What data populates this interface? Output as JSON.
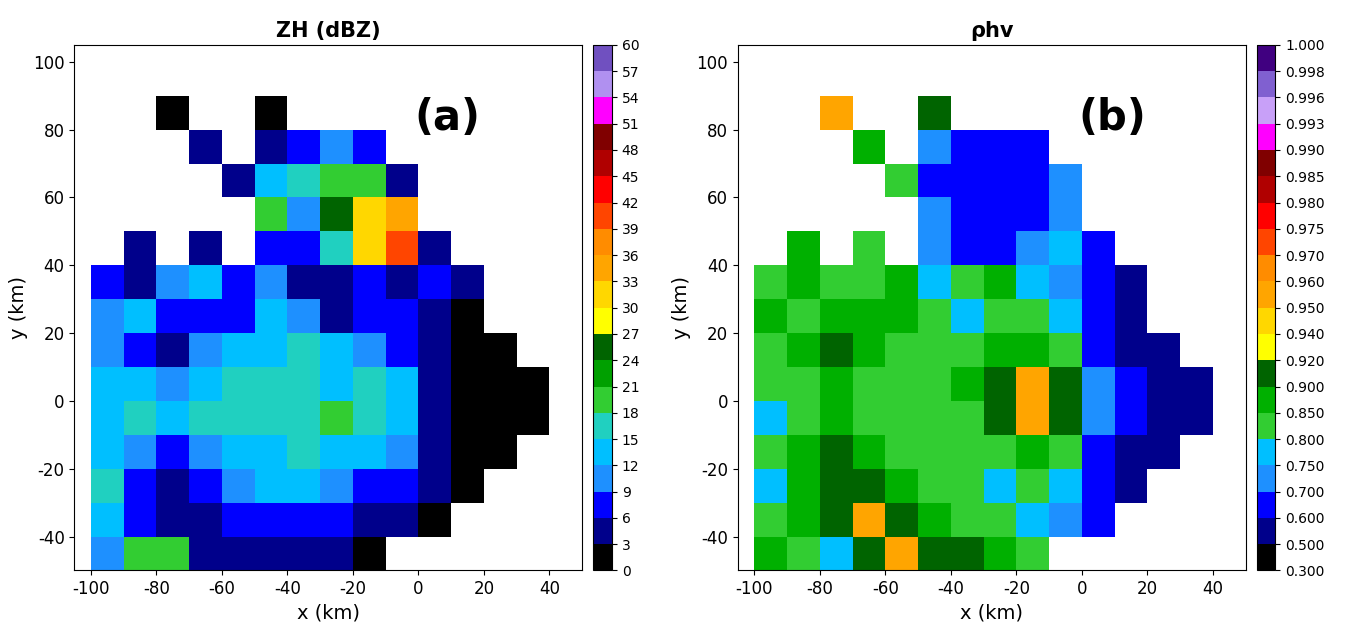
{
  "chart_data": [
    {
      "type": "heatmap",
      "title": "ZH (dBZ)",
      "annotation": "(a)",
      "x_label": "x (km)",
      "y_label": "y (km)",
      "xlim": [
        -105,
        50
      ],
      "ylim": [
        -50,
        105
      ],
      "xticks": [
        -100,
        -80,
        -60,
        -40,
        -20,
        0,
        20,
        40
      ],
      "yticks": [
        -40,
        -20,
        0,
        20,
        40,
        60,
        80,
        100
      ],
      "x_edges": [
        -100,
        -90,
        -80,
        -70,
        -60,
        -50,
        -40,
        -30,
        -20,
        -10,
        0,
        10,
        20,
        30,
        40,
        50
      ],
      "y_edges": [
        -50,
        -40,
        -30,
        -20,
        -10,
        0,
        10,
        20,
        30,
        40,
        50,
        60,
        70,
        80,
        90,
        100
      ],
      "cells": [
        [
          10,
          18,
          20,
          5,
          3,
          5,
          4,
          3,
          2,
          null,
          null,
          null,
          null,
          null,
          null
        ],
        [
          12,
          8,
          4,
          5,
          6,
          8,
          8,
          6,
          4,
          3,
          2,
          null,
          null,
          null,
          null
        ],
        [
          15,
          8,
          5,
          8,
          10,
          12,
          12,
          10,
          8,
          6,
          3,
          1,
          null,
          null,
          null
        ],
        [
          12,
          10,
          8,
          10,
          12,
          14,
          15,
          14,
          12,
          10,
          4,
          2,
          1,
          null,
          null
        ],
        [
          14,
          15,
          12,
          15,
          16,
          16,
          17,
          18,
          17,
          14,
          5,
          2,
          1,
          0,
          null
        ],
        [
          12,
          12,
          10,
          14,
          15,
          16,
          15,
          14,
          15,
          12,
          4,
          2,
          1,
          1,
          null
        ],
        [
          10,
          8,
          5,
          10,
          12,
          14,
          15,
          12,
          10,
          8,
          3,
          2,
          1,
          null,
          null
        ],
        [
          10,
          12,
          8,
          8,
          8,
          12,
          10,
          5,
          8,
          6,
          3,
          2,
          null,
          null,
          null
        ],
        [
          8,
          5,
          10,
          12,
          8,
          10,
          5,
          5,
          8,
          5,
          6,
          3,
          null,
          null,
          null
        ],
        [
          null,
          3,
          null,
          5,
          null,
          6,
          8,
          15,
          30,
          40,
          3,
          null,
          null,
          null,
          null
        ],
        [
          null,
          null,
          null,
          null,
          null,
          18,
          10,
          25,
          32,
          35,
          null,
          null,
          null,
          null,
          null
        ],
        [
          null,
          null,
          null,
          null,
          3,
          12,
          15,
          20,
          20,
          5,
          null,
          null,
          null,
          null,
          null
        ],
        [
          null,
          null,
          null,
          3,
          null,
          5,
          8,
          10,
          8,
          null,
          null,
          null,
          null,
          null,
          null
        ],
        [
          null,
          null,
          2,
          null,
          null,
          2,
          null,
          null,
          null,
          null,
          null,
          null,
          null,
          null,
          null
        ],
        [
          null,
          null,
          null,
          null,
          null,
          null,
          null,
          null,
          null,
          null,
          null,
          null,
          null,
          null,
          null
        ]
      ],
      "colorbar": {
        "ticks": [
          0,
          3,
          6,
          9,
          12,
          15,
          18,
          21,
          24,
          27,
          30,
          33,
          36,
          39,
          42,
          45,
          48,
          51,
          54,
          57,
          60
        ],
        "colors": [
          "#000000",
          "#00008b",
          "#0000ff",
          "#1e90ff",
          "#00bfff",
          "#20d0c0",
          "#32cd32",
          "#00a000",
          "#006400",
          "#ffff00",
          "#ffd700",
          "#ffa500",
          "#ff8c00",
          "#ff4500",
          "#ff0000",
          "#b00000",
          "#800000",
          "#ff00ff",
          "#b090f0",
          "#7050c0"
        ]
      }
    },
    {
      "type": "heatmap",
      "title": "ρhv",
      "annotation": "(b)",
      "x_label": "x (km)",
      "y_label": "y (km)",
      "xlim": [
        -105,
        50
      ],
      "ylim": [
        -50,
        105
      ],
      "xticks": [
        -100,
        -80,
        -60,
        -40,
        -20,
        0,
        20,
        40
      ],
      "yticks": [
        -40,
        -20,
        0,
        20,
        40,
        60,
        80,
        100
      ],
      "x_edges": [
        -100,
        -90,
        -80,
        -70,
        -60,
        -50,
        -40,
        -30,
        -20,
        -10,
        0,
        10,
        20,
        30,
        40,
        50
      ],
      "y_edges": [
        -50,
        -40,
        -30,
        -20,
        -10,
        0,
        10,
        20,
        30,
        40,
        50,
        60,
        70,
        80,
        90,
        100
      ],
      "cells": [
        [
          0.85,
          0.8,
          0.75,
          0.9,
          0.95,
          0.9,
          0.9,
          0.85,
          0.8,
          null,
          null,
          null,
          null,
          null,
          null
        ],
        [
          0.8,
          0.85,
          0.9,
          0.95,
          0.9,
          0.85,
          0.82,
          0.8,
          0.78,
          0.7,
          0.6,
          null,
          null,
          null,
          null
        ],
        [
          0.75,
          0.85,
          0.9,
          0.9,
          0.85,
          0.82,
          0.8,
          0.78,
          0.8,
          0.75,
          0.6,
          0.5,
          null,
          null,
          null
        ],
        [
          0.8,
          0.85,
          0.9,
          0.88,
          0.82,
          0.8,
          0.8,
          0.82,
          0.85,
          0.8,
          0.65,
          0.55,
          0.5,
          null,
          null
        ],
        [
          0.75,
          0.8,
          0.85,
          0.82,
          0.8,
          0.8,
          0.82,
          0.9,
          0.95,
          0.9,
          0.7,
          0.6,
          0.55,
          0.5,
          null
        ],
        [
          0.8,
          0.82,
          0.85,
          0.8,
          0.8,
          0.8,
          0.85,
          0.9,
          0.95,
          0.9,
          0.7,
          0.6,
          0.55,
          0.5,
          null
        ],
        [
          0.82,
          0.85,
          0.9,
          0.85,
          0.8,
          0.8,
          0.82,
          0.85,
          0.85,
          0.8,
          0.65,
          0.55,
          0.5,
          null,
          null
        ],
        [
          0.85,
          0.8,
          0.85,
          0.88,
          0.85,
          0.8,
          0.75,
          0.8,
          0.82,
          0.75,
          0.6,
          0.5,
          null,
          null,
          null
        ],
        [
          0.8,
          0.85,
          0.8,
          0.8,
          0.85,
          0.75,
          0.8,
          0.85,
          0.75,
          0.7,
          0.6,
          0.5,
          null,
          null,
          null
        ],
        [
          null,
          0.85,
          null,
          0.8,
          null,
          0.7,
          0.65,
          0.65,
          0.7,
          0.75,
          0.6,
          null,
          null,
          null,
          null
        ],
        [
          null,
          null,
          null,
          null,
          null,
          0.7,
          0.65,
          0.6,
          0.65,
          0.7,
          null,
          null,
          null,
          null,
          null
        ],
        [
          null,
          null,
          null,
          null,
          0.8,
          0.65,
          0.6,
          0.6,
          0.62,
          0.7,
          null,
          null,
          null,
          null,
          null
        ],
        [
          null,
          null,
          null,
          0.85,
          null,
          0.7,
          0.65,
          0.6,
          0.65,
          null,
          null,
          null,
          null,
          null,
          null
        ],
        [
          null,
          null,
          0.95,
          null,
          null,
          0.9,
          null,
          null,
          null,
          null,
          null,
          null,
          null,
          null,
          null
        ],
        [
          null,
          null,
          null,
          null,
          null,
          null,
          null,
          null,
          null,
          null,
          null,
          null,
          null,
          null,
          null
        ]
      ],
      "colorbar": {
        "ticks": [
          {
            "value": 0.3,
            "label": "0.300"
          },
          {
            "value": 0.5,
            "label": "0.500"
          },
          {
            "value": 0.6,
            "label": "0.600"
          },
          {
            "value": 0.7,
            "label": "0.700"
          },
          {
            "value": 0.75,
            "label": "0.750"
          },
          {
            "value": 0.8,
            "label": "0.800"
          },
          {
            "value": 0.85,
            "label": "0.850"
          },
          {
            "value": 0.9,
            "label": "0.900"
          },
          {
            "value": 0.92,
            "label": "0.920"
          },
          {
            "value": 0.94,
            "label": "0.940"
          },
          {
            "value": 0.95,
            "label": "0.950"
          },
          {
            "value": 0.96,
            "label": "0.960"
          },
          {
            "value": 0.97,
            "label": "0.970"
          },
          {
            "value": 0.975,
            "label": "0.975"
          },
          {
            "value": 0.98,
            "label": "0.980"
          },
          {
            "value": 0.985,
            "label": "0.985"
          },
          {
            "value": 0.99,
            "label": "0.990"
          },
          {
            "value": 0.993,
            "label": "0.993"
          },
          {
            "value": 0.996,
            "label": "0.996"
          },
          {
            "value": 0.998,
            "label": "0.998"
          },
          {
            "value": 1.0,
            "label": "1.000"
          }
        ],
        "colors": [
          "#000000",
          "#00008b",
          "#0000ff",
          "#1e90ff",
          "#00bfff",
          "#32cd32",
          "#00b000",
          "#006400",
          "#ffff00",
          "#ffd700",
          "#ffa500",
          "#ff8c00",
          "#ff4500",
          "#ff0000",
          "#b00000",
          "#800000",
          "#ff00ff",
          "#c8a0f8",
          "#8060d0",
          "#400080"
        ]
      }
    }
  ]
}
